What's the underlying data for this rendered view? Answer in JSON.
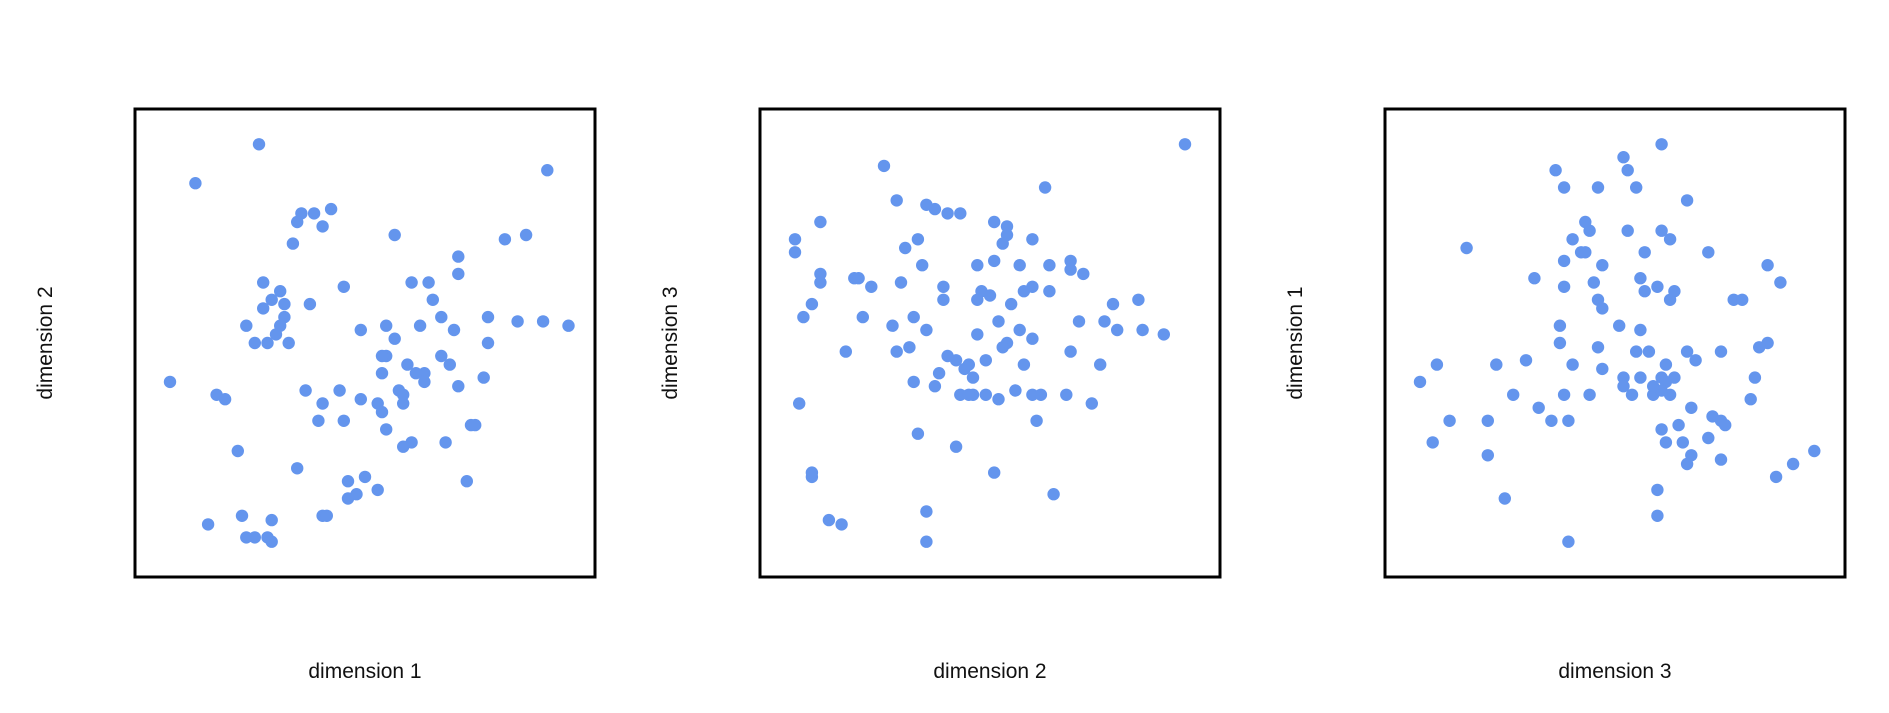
{
  "theme": {
    "point_color": "#6495ED",
    "frame_color": "#000000",
    "background": "#ffffff"
  },
  "chart_data": [
    {
      "type": "scatter",
      "xlabel": "dimension 1",
      "ylabel": "dimension 2",
      "xlim": [
        0,
        100
      ],
      "ylim": [
        0,
        100
      ],
      "grid": false,
      "ticks": false,
      "points": [
        [
          25,
          96
        ],
        [
          10,
          87
        ],
        [
          93,
          90
        ],
        [
          42,
          81
        ],
        [
          38,
          80
        ],
        [
          35,
          80
        ],
        [
          40,
          77
        ],
        [
          57,
          75
        ],
        [
          34,
          78
        ],
        [
          33,
          73
        ],
        [
          72,
          70
        ],
        [
          88,
          75
        ],
        [
          83,
          74
        ],
        [
          72,
          66
        ],
        [
          65,
          64
        ],
        [
          66,
          60
        ],
        [
          61,
          64
        ],
        [
          45,
          63
        ],
        [
          26,
          64
        ],
        [
          30,
          62
        ],
        [
          28,
          60
        ],
        [
          26,
          58
        ],
        [
          31,
          59
        ],
        [
          37,
          59
        ],
        [
          31,
          56
        ],
        [
          30,
          54
        ],
        [
          22,
          54
        ],
        [
          29,
          52
        ],
        [
          27,
          50
        ],
        [
          32,
          50
        ],
        [
          24,
          50
        ],
        [
          49,
          53
        ],
        [
          55,
          54
        ],
        [
          63,
          54
        ],
        [
          68,
          56
        ],
        [
          79,
          56
        ],
        [
          86,
          55
        ],
        [
          92,
          55
        ],
        [
          98,
          54
        ],
        [
          57,
          51
        ],
        [
          71,
          53
        ],
        [
          79,
          50
        ],
        [
          60,
          45
        ],
        [
          64,
          43
        ],
        [
          55,
          47
        ],
        [
          54,
          47
        ],
        [
          68,
          47
        ],
        [
          62,
          43
        ],
        [
          70,
          45
        ],
        [
          54,
          43
        ],
        [
          64,
          41
        ],
        [
          58,
          39
        ],
        [
          53,
          36
        ],
        [
          59,
          36
        ],
        [
          78,
          42
        ],
        [
          72,
          40
        ],
        [
          4,
          41
        ],
        [
          15,
          38
        ],
        [
          17,
          37
        ],
        [
          36,
          39
        ],
        [
          44,
          39
        ],
        [
          59,
          38
        ],
        [
          49,
          37
        ],
        [
          40,
          36
        ],
        [
          39,
          32
        ],
        [
          45,
          32
        ],
        [
          54,
          34
        ],
        [
          55,
          30
        ],
        [
          69,
          27
        ],
        [
          61,
          27
        ],
        [
          75,
          31
        ],
        [
          76,
          31
        ],
        [
          59,
          26
        ],
        [
          34,
          21
        ],
        [
          50,
          19
        ],
        [
          46,
          14
        ],
        [
          46,
          18
        ],
        [
          53,
          16
        ],
        [
          40,
          10
        ],
        [
          41,
          10
        ],
        [
          13,
          8
        ],
        [
          21,
          10
        ],
        [
          28,
          9
        ],
        [
          24,
          5
        ],
        [
          27,
          5
        ],
        [
          28,
          4
        ],
        [
          22,
          5
        ],
        [
          20,
          25
        ],
        [
          74,
          18
        ],
        [
          48,
          15
        ]
      ]
    },
    {
      "type": "scatter",
      "xlabel": "dimension 2",
      "ylabel": "dimension 3",
      "xlim": [
        0,
        100
      ],
      "ylim": [
        0,
        100
      ],
      "grid": false,
      "ticks": false,
      "points": [
        [
          96,
          96
        ],
        [
          25,
          91
        ],
        [
          63,
          86
        ],
        [
          28,
          83
        ],
        [
          37,
          81
        ],
        [
          43,
          80
        ],
        [
          40,
          80
        ],
        [
          35,
          82
        ],
        [
          51,
          78
        ],
        [
          54,
          77
        ],
        [
          54,
          75
        ],
        [
          53,
          73
        ],
        [
          60,
          74
        ],
        [
          33,
          74
        ],
        [
          4,
          74
        ],
        [
          4,
          71
        ],
        [
          10,
          78
        ],
        [
          34,
          68
        ],
        [
          30,
          72
        ],
        [
          51,
          69
        ],
        [
          57,
          68
        ],
        [
          47,
          68
        ],
        [
          64,
          68
        ],
        [
          69,
          69
        ],
        [
          69,
          67
        ],
        [
          72,
          66
        ],
        [
          10,
          66
        ],
        [
          10,
          64
        ],
        [
          18,
          65
        ],
        [
          19,
          65
        ],
        [
          22,
          63
        ],
        [
          29,
          64
        ],
        [
          39,
          63
        ],
        [
          48,
          62
        ],
        [
          60,
          63
        ],
        [
          64,
          62
        ],
        [
          50,
          61
        ],
        [
          58,
          62
        ],
        [
          39,
          60
        ],
        [
          47,
          60
        ],
        [
          55,
          59
        ],
        [
          85,
          60
        ],
        [
          79,
          59
        ],
        [
          8,
          59
        ],
        [
          6,
          56
        ],
        [
          20,
          56
        ],
        [
          27,
          54
        ],
        [
          32,
          56
        ],
        [
          35,
          53
        ],
        [
          52,
          55
        ],
        [
          57,
          53
        ],
        [
          47,
          52
        ],
        [
          60,
          51
        ],
        [
          71,
          55
        ],
        [
          80,
          53
        ],
        [
          77,
          55
        ],
        [
          86,
          53
        ],
        [
          91,
          52
        ],
        [
          54,
          50
        ],
        [
          53,
          49
        ],
        [
          31,
          49
        ],
        [
          28,
          48
        ],
        [
          16,
          48
        ],
        [
          42,
          46
        ],
        [
          45,
          45
        ],
        [
          40,
          47
        ],
        [
          49,
          46
        ],
        [
          58,
          45
        ],
        [
          44,
          44
        ],
        [
          38,
          43
        ],
        [
          46,
          42
        ],
        [
          56,
          39
        ],
        [
          60,
          38
        ],
        [
          52,
          37
        ],
        [
          49,
          38
        ],
        [
          46,
          38
        ],
        [
          43,
          38
        ],
        [
          45,
          38
        ],
        [
          62,
          38
        ],
        [
          68,
          38
        ],
        [
          69,
          48
        ],
        [
          32,
          41
        ],
        [
          37,
          40
        ],
        [
          76,
          45
        ],
        [
          74,
          36
        ],
        [
          5,
          36
        ],
        [
          61,
          32
        ],
        [
          33,
          29
        ],
        [
          42,
          26
        ],
        [
          8,
          19
        ],
        [
          51,
          20
        ],
        [
          65,
          15
        ],
        [
          8,
          20
        ],
        [
          35,
          11
        ],
        [
          15,
          8
        ],
        [
          12,
          9
        ],
        [
          35,
          4
        ]
      ]
    },
    {
      "type": "scatter",
      "xlabel": "dimension 3",
      "ylabel": "dimension 1",
      "xlim": [
        0,
        100
      ],
      "ylim": [
        0,
        100
      ],
      "grid": false,
      "ticks": false,
      "points": [
        [
          61,
          96
        ],
        [
          52,
          93
        ],
        [
          36,
          90
        ],
        [
          53,
          90
        ],
        [
          38,
          86
        ],
        [
          46,
          86
        ],
        [
          55,
          86
        ],
        [
          67,
          83
        ],
        [
          15,
          72
        ],
        [
          43,
          78
        ],
        [
          44,
          76
        ],
        [
          40,
          74
        ],
        [
          42,
          71
        ],
        [
          43,
          71
        ],
        [
          38,
          69
        ],
        [
          53,
          76
        ],
        [
          57,
          71
        ],
        [
          61,
          76
        ],
        [
          63,
          74
        ],
        [
          72,
          71
        ],
        [
          31,
          65
        ],
        [
          38,
          63
        ],
        [
          45,
          64
        ],
        [
          47,
          68
        ],
        [
          56,
          65
        ],
        [
          57,
          62
        ],
        [
          60,
          63
        ],
        [
          64,
          62
        ],
        [
          86,
          68
        ],
        [
          89,
          64
        ],
        [
          46,
          60
        ],
        [
          63,
          60
        ],
        [
          78,
          60
        ],
        [
          80,
          60
        ],
        [
          51,
          54
        ],
        [
          56,
          53
        ],
        [
          67,
          48
        ],
        [
          75,
          48
        ],
        [
          86,
          50
        ],
        [
          62,
          45
        ],
        [
          47,
          58
        ],
        [
          37,
          54
        ],
        [
          55,
          48
        ],
        [
          84,
          49
        ],
        [
          69,
          46
        ],
        [
          47,
          44
        ],
        [
          52,
          42
        ],
        [
          56,
          42
        ],
        [
          61,
          42
        ],
        [
          64,
          42
        ],
        [
          62,
          41
        ],
        [
          59,
          38
        ],
        [
          63,
          38
        ],
        [
          61,
          39
        ],
        [
          59,
          40
        ],
        [
          38,
          38
        ],
        [
          32,
          35
        ],
        [
          39,
          32
        ],
        [
          26,
          38
        ],
        [
          52,
          40
        ],
        [
          44,
          38
        ],
        [
          54,
          38
        ],
        [
          4,
          41
        ],
        [
          8,
          45
        ],
        [
          22,
          45
        ],
        [
          29,
          46
        ],
        [
          37,
          50
        ],
        [
          83,
          42
        ],
        [
          11,
          32
        ],
        [
          20,
          32
        ],
        [
          35,
          32
        ],
        [
          40,
          45
        ],
        [
          46,
          49
        ],
        [
          58,
          48
        ],
        [
          68,
          35
        ],
        [
          73,
          33
        ],
        [
          75,
          32
        ],
        [
          76,
          31
        ],
        [
          82,
          37
        ],
        [
          61,
          30
        ],
        [
          65,
          31
        ],
        [
          62,
          27
        ],
        [
          66,
          27
        ],
        [
          72,
          28
        ],
        [
          68,
          24
        ],
        [
          24,
          14
        ],
        [
          39,
          4
        ],
        [
          60,
          16
        ],
        [
          60,
          10
        ],
        [
          7,
          27
        ],
        [
          20,
          24
        ],
        [
          67,
          22
        ],
        [
          75,
          23
        ],
        [
          88,
          19
        ],
        [
          92,
          22
        ],
        [
          97,
          25
        ]
      ]
    }
  ]
}
